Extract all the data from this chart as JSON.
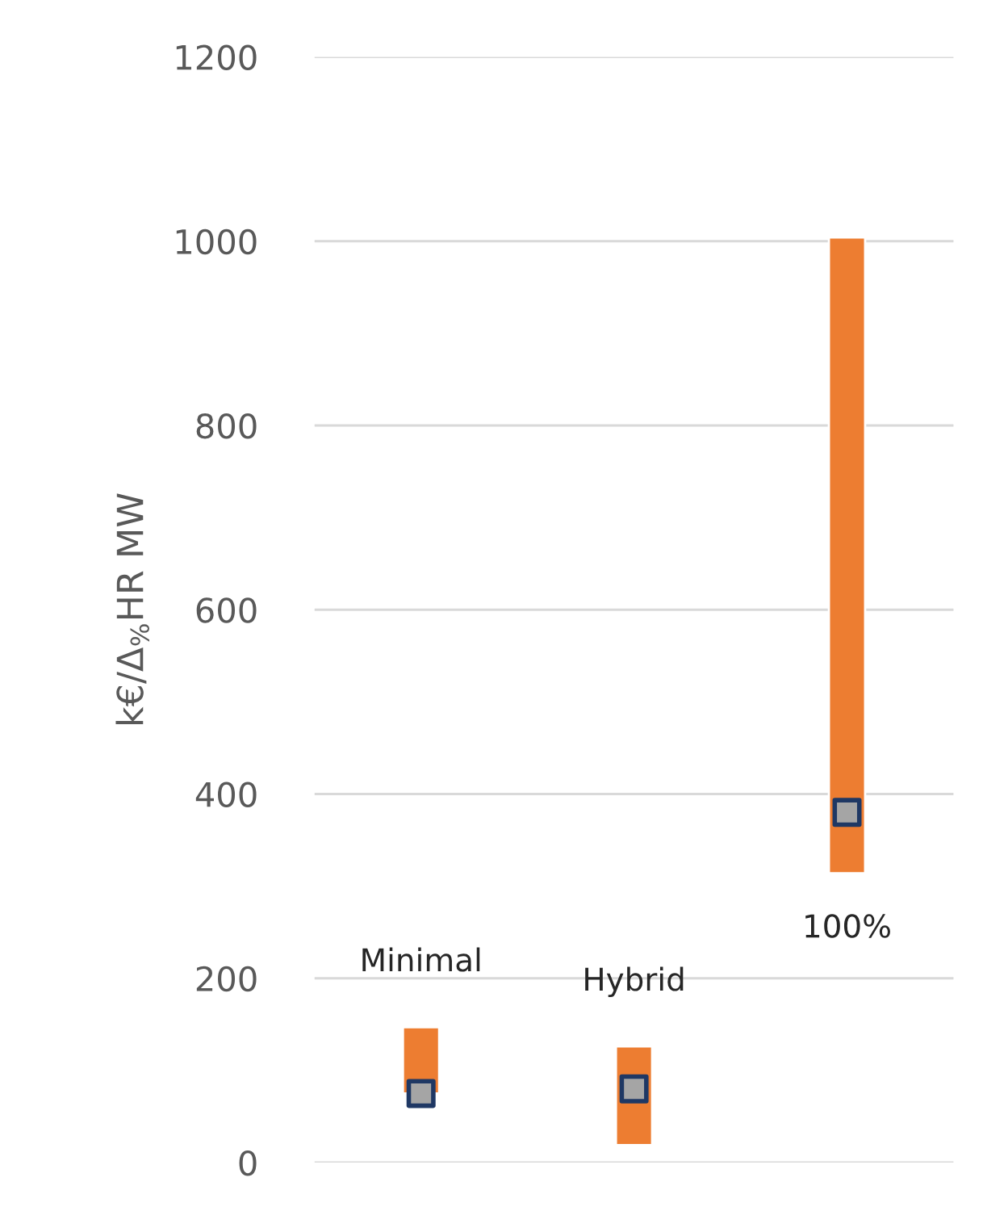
{
  "chart_data": {
    "type": "bar",
    "ylabel": "k€/Δ$_{%}$HR MW",
    "categories": [
      "Minimal",
      "Hybrid",
      "100%"
    ],
    "ylim": [
      0,
      1200
    ],
    "yticks": [
      0,
      200,
      400,
      600,
      800,
      1000,
      1200
    ],
    "grid": "y",
    "series": [
      {
        "color": "#ed7d31",
        "base": [
          75,
          19,
          314
        ],
        "values": [
          72,
          107,
          690
        ]
      },
      {
        "type": "scatter",
        "color": "#a5a5a5",
        "marker": "square",
        "values": [
          75,
          80,
          380
        ]
      }
    ]
  }
}
